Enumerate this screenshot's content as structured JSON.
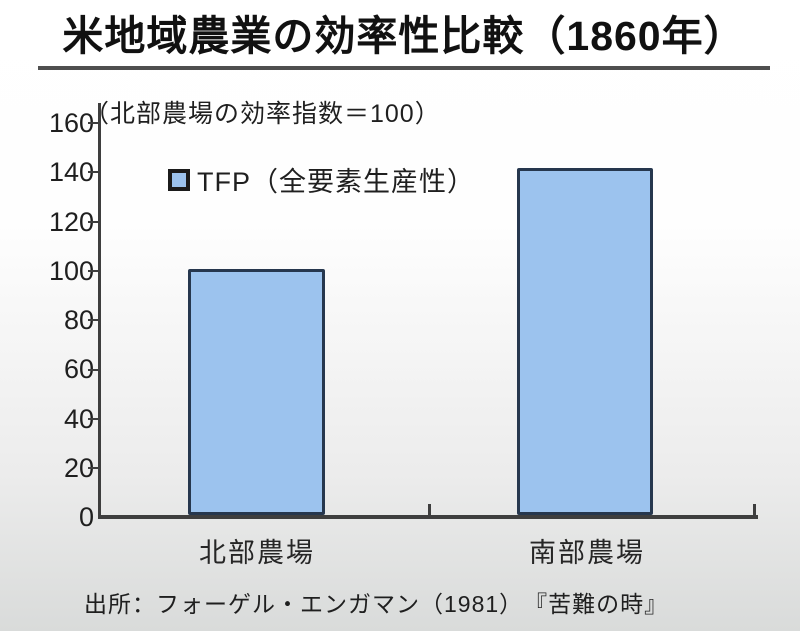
{
  "slide": {
    "title": "米地域農業の効率性比較（1860年）",
    "subtitle": "（北部農場の効率指数＝100）",
    "source": "出所：フォーゲル・エンガマン（1981）　『苦難の時』"
  },
  "legend": {
    "label": "TFP（全要素生産性）",
    "swatch_fill": "#9CC3EE",
    "swatch_border": "#1B1B1B"
  },
  "chart_data": {
    "type": "bar",
    "title": "米地域農業の効率性比較（1860年）",
    "subtitle": "（北部農場の効率指数＝100）",
    "categories": [
      "北部農場",
      "南部農場"
    ],
    "series": [
      {
        "name": "TFP（全要素生産性）",
        "values": [
          100,
          141
        ]
      }
    ],
    "ylabel": "",
    "xlabel": "",
    "ylim": [
      0,
      160
    ],
    "yticks": [
      0,
      20,
      40,
      60,
      80,
      100,
      120,
      140,
      160
    ],
    "grid": false,
    "legend_position": "top-left-inside",
    "bar_fill": "#9CC3EE",
    "bar_border": "#26374E",
    "source": "出所：フォーゲル・エンガマン（1981）　『苦難の時』"
  }
}
